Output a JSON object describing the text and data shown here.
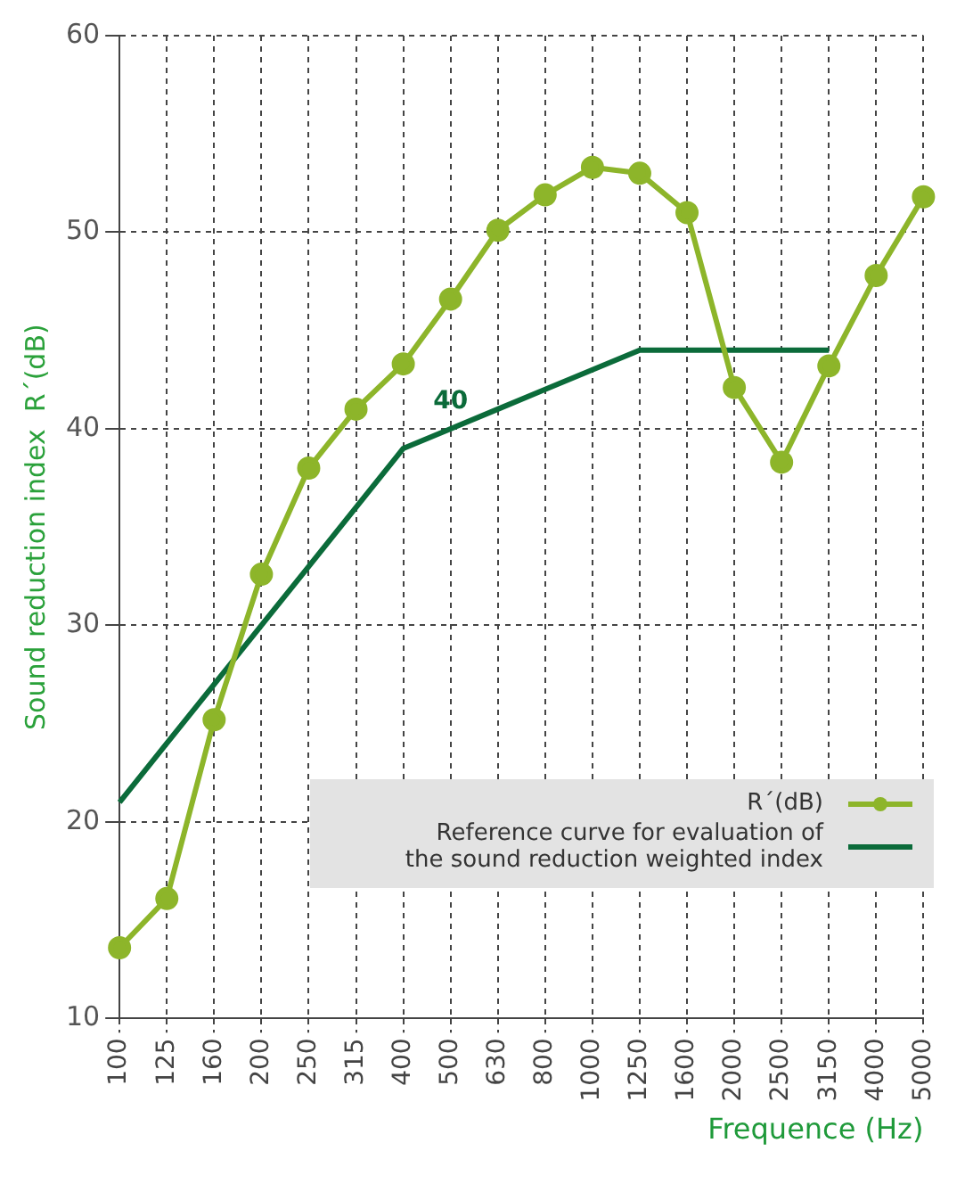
{
  "chart_data": {
    "type": "line",
    "ylabel": "Sound reduction index  R´(dB)",
    "xlabel": "Frequence (Hz)",
    "categories": [
      "100",
      "125",
      "160",
      "200",
      "250",
      "315",
      "400",
      "500",
      "630",
      "800",
      "1000",
      "1250",
      "1600",
      "2000",
      "2500",
      "3150",
      "4000",
      "5000"
    ],
    "series": [
      {
        "name": "R´(dB)",
        "color": "#8db52a",
        "marker": "circle",
        "values": [
          13.6,
          16.1,
          25.2,
          32.6,
          38.0,
          41.0,
          43.3,
          46.6,
          50.1,
          51.9,
          53.3,
          53.0,
          51.0,
          42.1,
          38.3,
          43.2,
          47.8,
          51.8
        ]
      },
      {
        "name": "Reference curve for evaluation of the sound reduction weighted index",
        "color": "#0b6b3a",
        "marker": "none",
        "values": [
          21,
          24,
          27,
          30,
          33,
          36,
          39,
          40,
          41,
          42,
          43,
          44,
          44,
          44,
          44,
          44,
          null,
          null
        ]
      }
    ],
    "ylim": [
      10,
      60
    ],
    "yticks": [
      10,
      20,
      30,
      40,
      50,
      60
    ],
    "grid": true,
    "line_style": "solid",
    "legend": "bottom right",
    "annotations": [
      {
        "text": "40",
        "x": "500",
        "y": 40
      }
    ]
  }
}
